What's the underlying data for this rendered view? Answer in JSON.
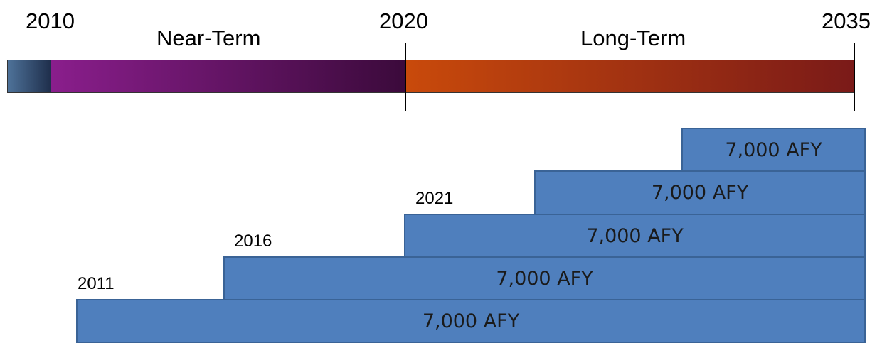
{
  "timeline": {
    "years": [
      "2010",
      "2020",
      "2035"
    ],
    "phases": [
      "Near-Term",
      "Long-Term"
    ]
  },
  "steps": [
    {
      "start_year": "2011",
      "amount": "7,000 AFY"
    },
    {
      "start_year": "2016",
      "amount": "7,000 AFY"
    },
    {
      "start_year": "2021",
      "amount": "7,000 AFY"
    },
    {
      "start_year": "",
      "amount": "7,000 AFY"
    },
    {
      "start_year": "",
      "amount": "7,000 AFY"
    }
  ],
  "colors": {
    "step_fill": "#4f7fbd",
    "near_term_start": "#8a1e8c",
    "near_term_end": "#3b0a3b",
    "long_term_start": "#c94a0b",
    "long_term_end": "#7a1a18"
  }
}
